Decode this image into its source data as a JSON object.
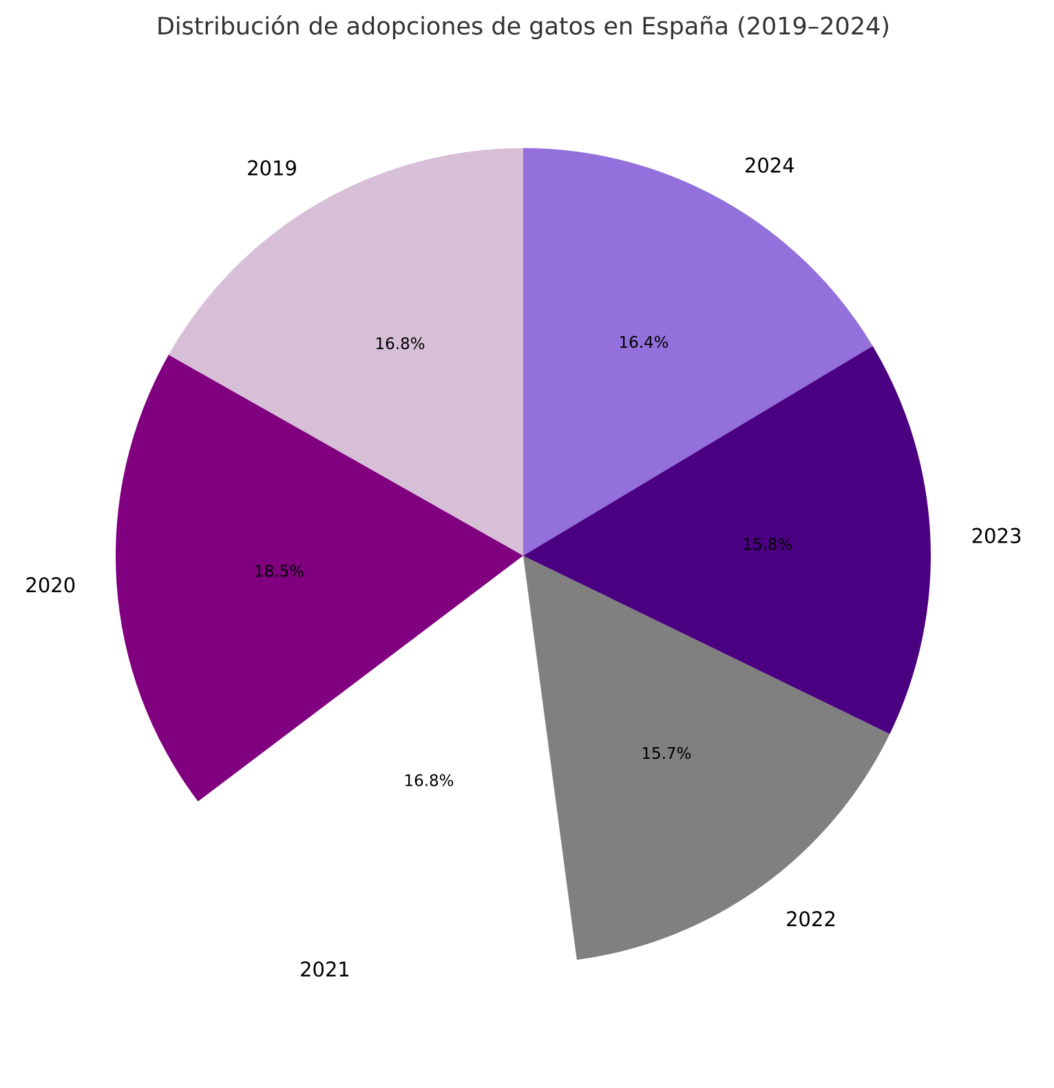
{
  "chart_data": {
    "type": "pie",
    "title": "Distribución de adopciones de gatos en España (2019–2024)",
    "categories": [
      "2019",
      "2020",
      "2021",
      "2022",
      "2023",
      "2024"
    ],
    "values": [
      16.8,
      18.5,
      16.8,
      15.7,
      15.8,
      16.4
    ],
    "value_labels": [
      "16.8%",
      "18.5%",
      "16.8%",
      "15.7%",
      "15.8%",
      "16.4%"
    ],
    "colors": [
      "#D8BFD8",
      "#800080",
      "#FFFFFF",
      "#808080",
      "#4B0082",
      "#9370DB"
    ],
    "start": "top",
    "direction": "counterclockwise",
    "legend": "none"
  }
}
